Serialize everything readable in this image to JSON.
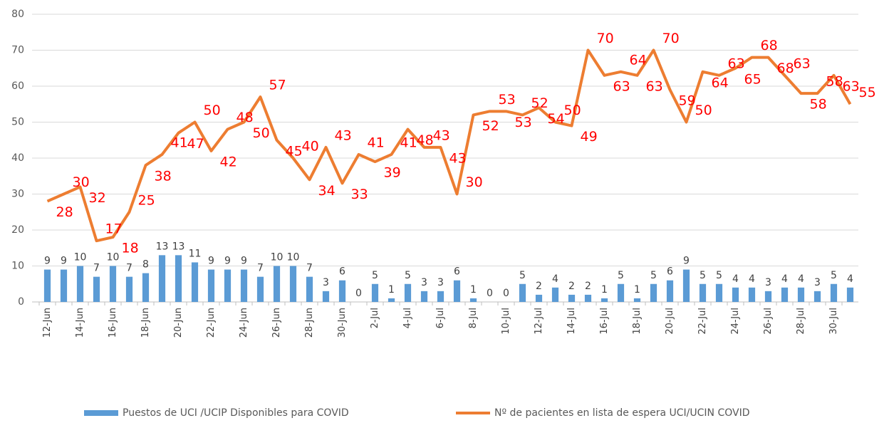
{
  "chart_data": {
    "type": "bar_line",
    "categories": [
      "12-Jun",
      null,
      "14-Jun",
      null,
      "16-Jun",
      null,
      "18-Jun",
      null,
      "20-Jun",
      null,
      "22-Jun",
      null,
      "24-Jun",
      null,
      "26-Jun",
      null,
      "28-Jun",
      null,
      "30-Jun",
      null,
      "2-Jul",
      null,
      "4-Jul",
      null,
      "6-Jul",
      null,
      "8-Jul",
      null,
      "10-Jul",
      null,
      "12-Jul",
      null,
      "14-Jul",
      null,
      "16-Jul",
      null,
      "18-Jul",
      null,
      "20-Jul",
      null,
      "22-Jul",
      null,
      "24-Jul",
      null,
      "26-Jul",
      null,
      "28-Jul",
      null,
      "30-Jul",
      null
    ],
    "series": [
      {
        "name": "Puestos de UCI /UCIP Disponibles para COVID",
        "type": "bar",
        "color": "#5b9bd5",
        "values": [
          9,
          9,
          10,
          7,
          10,
          7,
          8,
          13,
          13,
          11,
          9,
          9,
          9,
          7,
          10,
          10,
          7,
          3,
          6,
          0,
          5,
          1,
          5,
          3,
          3,
          6,
          1,
          0,
          0,
          5,
          2,
          4,
          2,
          2,
          1,
          5,
          1,
          5,
          6,
          9,
          5,
          5,
          4,
          4,
          3,
          4,
          4,
          3,
          5,
          4
        ]
      },
      {
        "name": "Nº de pacientes en lista de espera UCI/UCIN COVID",
        "type": "line",
        "color": "#ed7d31",
        "values": [
          28,
          30,
          32,
          17,
          18,
          25,
          38,
          41,
          47,
          50,
          42,
          48,
          50,
          57,
          45,
          40,
          34,
          43,
          33,
          41,
          39,
          41,
          48,
          43,
          43,
          30,
          52,
          53,
          53,
          52,
          54,
          50,
          49,
          70,
          63,
          64,
          63,
          70,
          59,
          50,
          64,
          63,
          65,
          68,
          68,
          63,
          58,
          58,
          63,
          55
        ]
      }
    ],
    "ylim": [
      0,
      80
    ],
    "yticks": [
      0,
      10,
      20,
      30,
      40,
      50,
      60,
      70,
      80
    ],
    "grid": true,
    "legend": "bottom"
  }
}
